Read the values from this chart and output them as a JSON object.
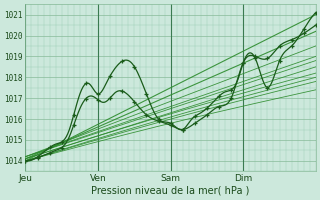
{
  "title": "",
  "xlabel": "Pression niveau de la mer( hPa )",
  "ylabel": "",
  "bg_color": "#cce8dc",
  "grid_color": "#99ccb3",
  "line_color_dark": "#1a5c1a",
  "line_color_light": "#2d8c2d",
  "ylim": [
    1013.5,
    1021.5
  ],
  "xlim": [
    0,
    96
  ],
  "yticks": [
    1014,
    1015,
    1016,
    1017,
    1018,
    1019,
    1020,
    1021
  ],
  "xtick_positions": [
    0,
    24,
    48,
    72,
    96
  ],
  "xtick_labels": [
    "Jeu",
    "Ven",
    "Sam",
    "Dim",
    ""
  ],
  "day_lines": [
    0,
    24,
    48,
    72,
    96
  ]
}
